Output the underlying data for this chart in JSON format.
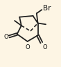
{
  "bg_color": "#fdf5e4",
  "bond_color": "#222222",
  "line_width": 1.3,
  "label_Br": "Br",
  "label_O_bridge": "O",
  "label_O_keto1": "O",
  "label_O_keto2": "O",
  "figsize": [
    0.88,
    0.97
  ],
  "dpi": 100,
  "xlim": [
    0,
    10
  ],
  "ylim": [
    0,
    11
  ],
  "fontsize": 6.0
}
